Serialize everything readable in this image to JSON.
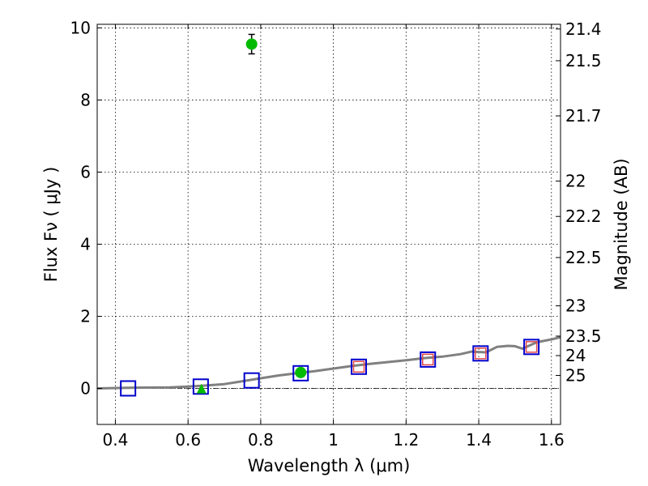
{
  "chart_data": {
    "type": "scatter",
    "xlabel": "Wavelength  λ (μm)",
    "ylabel": "Flux  Fν  ( μJy )",
    "ylabel_right": "Magnitude (AB)",
    "xlim": [
      0.35,
      1.625
    ],
    "ylim": [
      -1,
      10.1
    ],
    "x_ticks": [
      0.4,
      0.6,
      0.8,
      1.0,
      1.2,
      1.4,
      1.6
    ],
    "x_tick_labels": [
      "0.4",
      "0.6",
      "0.8",
      "1",
      "1.2",
      "1.4",
      "1.6"
    ],
    "y_ticks": [
      0,
      2,
      4,
      6,
      8,
      10
    ],
    "y_tick_labels": [
      "0",
      "2",
      "4",
      "6",
      "8",
      "10"
    ],
    "right_ticks": [
      {
        "label": "21.4",
        "flux": 9.97
      },
      {
        "label": "21.5",
        "flux": 9.09
      },
      {
        "label": "21.7",
        "flux": 7.56
      },
      {
        "label": "22",
        "flux": 5.75
      },
      {
        "label": "22.2",
        "flux": 4.77
      },
      {
        "label": "22.5",
        "flux": 3.63
      },
      {
        "label": "23",
        "flux": 2.29
      },
      {
        "label": "23.5",
        "flux": 1.45
      },
      {
        "label": "24",
        "flux": 0.91
      },
      {
        "label": "25",
        "flux": 0.36
      }
    ],
    "grid": true,
    "zero_line": true,
    "model_curve": {
      "color": "#808080",
      "x": [
        0.35,
        0.45,
        0.55,
        0.6,
        0.65,
        0.7,
        0.75,
        0.8,
        0.85,
        0.9,
        0.95,
        1.0,
        1.05,
        1.1,
        1.15,
        1.2,
        1.25,
        1.3,
        1.35,
        1.38,
        1.42,
        1.45,
        1.48,
        1.5,
        1.52,
        1.56,
        1.6,
        1.625
      ],
      "y": [
        0.0,
        0.02,
        0.03,
        0.05,
        0.08,
        0.12,
        0.2,
        0.28,
        0.36,
        0.42,
        0.48,
        0.55,
        0.62,
        0.68,
        0.73,
        0.78,
        0.84,
        0.88,
        0.95,
        1.02,
        1.0,
        1.15,
        1.18,
        1.17,
        1.1,
        1.28,
        1.36,
        1.42
      ]
    },
    "series": [
      {
        "marker": "square",
        "color": "#0000cc",
        "x": [
          0.435,
          0.635,
          0.775,
          0.91,
          1.07,
          1.26,
          1.405,
          1.545
        ],
        "y": [
          0.0,
          0.05,
          0.22,
          0.42,
          0.6,
          0.8,
          0.97,
          1.15
        ]
      },
      {
        "marker": "square",
        "color": "#e34a4a",
        "x": [
          1.07,
          1.26,
          1.405,
          1.545
        ],
        "y": [
          0.6,
          0.8,
          0.97,
          1.15
        ]
      },
      {
        "marker": "circle",
        "color": "#00bb00",
        "x": [
          0.775,
          0.91
        ],
        "y": [
          9.55,
          0.44
        ],
        "yerr": [
          0.27,
          0.0
        ]
      },
      {
        "marker": "triangle",
        "color": "#00bb00",
        "x": [
          0.637
        ],
        "y": [
          -0.05
        ]
      }
    ]
  }
}
